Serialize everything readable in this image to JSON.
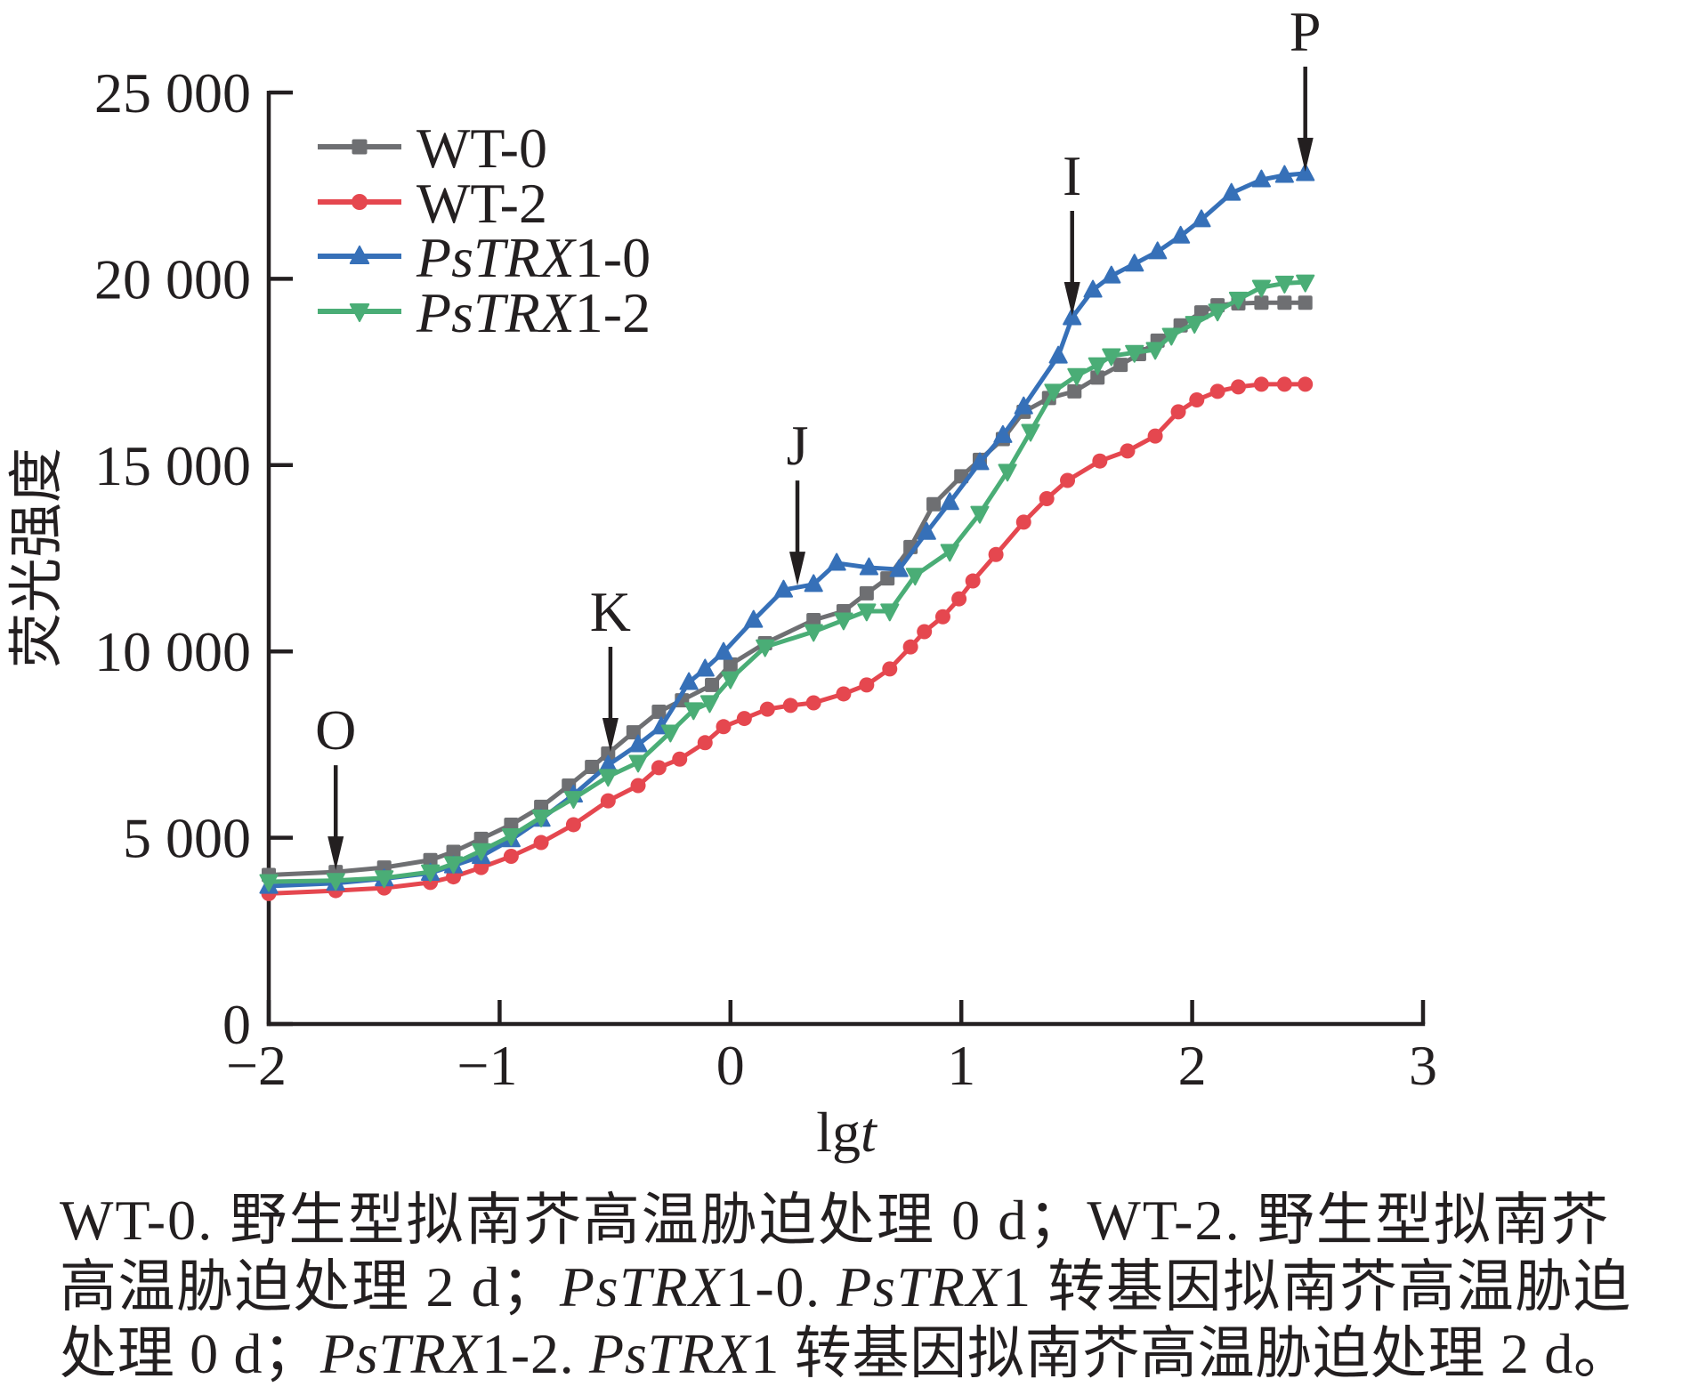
{
  "chart_data": {
    "type": "line",
    "title": "",
    "xlabel": "lgt",
    "xlabel_italic_part": "t",
    "xlabel_roman_part": "lg",
    "ylabel": "荧光强度",
    "xlim": [
      -2,
      3
    ],
    "ylim": [
      0,
      25000
    ],
    "grid": false,
    "legend_position": "top-left",
    "x_ticks": [
      -2,
      -1,
      0,
      1,
      2,
      3
    ],
    "x_tick_labels": [
      "−2",
      "−1",
      "0",
      "1",
      "2",
      "3"
    ],
    "y_ticks": [
      0,
      5000,
      10000,
      15000,
      20000,
      25000
    ],
    "y_tick_labels": [
      "0",
      "5 000",
      "10 000",
      "15 000",
      "20 000",
      "25 000"
    ],
    "series": [
      {
        "name": "WT-0",
        "legend_parts": [
          {
            "text": "WT-0",
            "italic": false
          }
        ],
        "color": "#6e6f72",
        "marker": "square",
        "points": [
          [
            -2,
            4000
          ],
          [
            -1.71,
            4080
          ],
          [
            -1.5,
            4200
          ],
          [
            -1.3,
            4400
          ],
          [
            -1.2,
            4620
          ],
          [
            -1.08,
            4970
          ],
          [
            -0.95,
            5350
          ],
          [
            -0.82,
            5830
          ],
          [
            -0.7,
            6400
          ],
          [
            -0.6,
            6900
          ],
          [
            -0.53,
            7260
          ],
          [
            -0.42,
            7830
          ],
          [
            -0.31,
            8380
          ],
          [
            -0.21,
            8690
          ],
          [
            -0.08,
            9100
          ],
          [
            0,
            9650
          ],
          [
            0.15,
            10220
          ],
          [
            0.36,
            10840
          ],
          [
            0.49,
            11080
          ],
          [
            0.59,
            11560
          ],
          [
            0.68,
            11960
          ],
          [
            0.78,
            12800
          ],
          [
            0.88,
            13950
          ],
          [
            1.0,
            14700
          ],
          [
            1.08,
            15140
          ],
          [
            1.18,
            15700
          ],
          [
            1.27,
            16430
          ],
          [
            1.38,
            16800
          ],
          [
            1.49,
            16980
          ],
          [
            1.59,
            17350
          ],
          [
            1.69,
            17690
          ],
          [
            1.77,
            17980
          ],
          [
            1.85,
            18340
          ],
          [
            1.95,
            18750
          ],
          [
            2.04,
            19100
          ],
          [
            2.11,
            19290
          ],
          [
            2.2,
            19340
          ],
          [
            2.3,
            19360
          ],
          [
            2.4,
            19360
          ],
          [
            2.49,
            19360
          ]
        ]
      },
      {
        "name": "WT-2",
        "legend_parts": [
          {
            "text": "WT-2",
            "italic": false
          }
        ],
        "color": "#e5474f",
        "marker": "circle",
        "points": [
          [
            -2,
            3500
          ],
          [
            -1.71,
            3580
          ],
          [
            -1.5,
            3650
          ],
          [
            -1.3,
            3800
          ],
          [
            -1.2,
            3950
          ],
          [
            -1.08,
            4200
          ],
          [
            -0.95,
            4500
          ],
          [
            -0.82,
            4870
          ],
          [
            -0.68,
            5350
          ],
          [
            -0.53,
            5990
          ],
          [
            -0.4,
            6400
          ],
          [
            -0.31,
            6880
          ],
          [
            -0.22,
            7110
          ],
          [
            -0.11,
            7550
          ],
          [
            -0.03,
            7980
          ],
          [
            0.06,
            8200
          ],
          [
            0.16,
            8450
          ],
          [
            0.26,
            8550
          ],
          [
            0.36,
            8620
          ],
          [
            0.49,
            8860
          ],
          [
            0.59,
            9100
          ],
          [
            0.69,
            9530
          ],
          [
            0.78,
            10120
          ],
          [
            0.84,
            10530
          ],
          [
            0.92,
            10930
          ],
          [
            0.99,
            11410
          ],
          [
            1.05,
            11890
          ],
          [
            1.15,
            12600
          ],
          [
            1.27,
            13470
          ],
          [
            1.37,
            14100
          ],
          [
            1.46,
            14590
          ],
          [
            1.6,
            15110
          ],
          [
            1.72,
            15380
          ],
          [
            1.84,
            15780
          ],
          [
            1.94,
            16430
          ],
          [
            2.02,
            16750
          ],
          [
            2.11,
            16980
          ],
          [
            2.2,
            17100
          ],
          [
            2.3,
            17170
          ],
          [
            2.4,
            17170
          ],
          [
            2.49,
            17170
          ]
        ]
      },
      {
        "name": "PsTRX1-0",
        "legend_parts": [
          {
            "text": "PsTRX",
            "italic": true
          },
          {
            "text": "1-0",
            "italic": false
          }
        ],
        "color": "#3670b8",
        "marker": "triangle-up",
        "points": [
          [
            -2,
            3700
          ],
          [
            -1.71,
            3780
          ],
          [
            -1.5,
            3900
          ],
          [
            -1.3,
            4050
          ],
          [
            -1.2,
            4250
          ],
          [
            -1.08,
            4500
          ],
          [
            -0.95,
            4950
          ],
          [
            -0.82,
            5500
          ],
          [
            -0.68,
            6150
          ],
          [
            -0.53,
            6950
          ],
          [
            -0.4,
            7500
          ],
          [
            -0.3,
            7980
          ],
          [
            -0.18,
            9170
          ],
          [
            -0.11,
            9530
          ],
          [
            -0.03,
            9980
          ],
          [
            0.1,
            10840
          ],
          [
            0.23,
            11650
          ],
          [
            0.36,
            11800
          ],
          [
            0.46,
            12370
          ],
          [
            0.6,
            12250
          ],
          [
            0.73,
            12200
          ],
          [
            0.85,
            13200
          ],
          [
            0.95,
            14000
          ],
          [
            1.08,
            15070
          ],
          [
            1.18,
            15800
          ],
          [
            1.27,
            16570
          ],
          [
            1.42,
            17930
          ],
          [
            1.48,
            18960
          ],
          [
            1.57,
            19700
          ],
          [
            1.65,
            20080
          ],
          [
            1.75,
            20400
          ],
          [
            1.85,
            20730
          ],
          [
            1.95,
            21150
          ],
          [
            2.04,
            21590
          ],
          [
            2.17,
            22300
          ],
          [
            2.3,
            22660
          ],
          [
            2.4,
            22780
          ],
          [
            2.49,
            22830
          ]
        ]
      },
      {
        "name": "PsTRX1-2",
        "legend_parts": [
          {
            "text": "PsTRX",
            "italic": true
          },
          {
            "text": "1-2",
            "italic": false
          }
        ],
        "color": "#4aad76",
        "marker": "triangle-down",
        "points": [
          [
            -2,
            3820
          ],
          [
            -1.71,
            3850
          ],
          [
            -1.5,
            3920
          ],
          [
            -1.3,
            4080
          ],
          [
            -1.2,
            4300
          ],
          [
            -1.08,
            4650
          ],
          [
            -0.95,
            5050
          ],
          [
            -0.82,
            5550
          ],
          [
            -0.68,
            6050
          ],
          [
            -0.53,
            6640
          ],
          [
            -0.4,
            7020
          ],
          [
            -0.26,
            7830
          ],
          [
            -0.16,
            8430
          ],
          [
            -0.09,
            8620
          ],
          [
            0,
            9260
          ],
          [
            0.15,
            10120
          ],
          [
            0.36,
            10530
          ],
          [
            0.49,
            10840
          ],
          [
            0.59,
            11080
          ],
          [
            0.69,
            11080
          ],
          [
            0.8,
            12040
          ],
          [
            0.95,
            12680
          ],
          [
            1.08,
            13700
          ],
          [
            1.2,
            14830
          ],
          [
            1.3,
            15900
          ],
          [
            1.4,
            16980
          ],
          [
            1.5,
            17400
          ],
          [
            1.59,
            17690
          ],
          [
            1.65,
            17930
          ],
          [
            1.75,
            18020
          ],
          [
            1.84,
            18100
          ],
          [
            1.91,
            18480
          ],
          [
            2.01,
            18800
          ],
          [
            2.11,
            19130
          ],
          [
            2.2,
            19450
          ],
          [
            2.3,
            19770
          ],
          [
            2.4,
            19880
          ],
          [
            2.49,
            19910
          ]
        ]
      }
    ],
    "annotations": [
      {
        "label": "O",
        "x": -1.71,
        "y": 4080
      },
      {
        "label": "K",
        "x": -0.52,
        "y": 7260
      },
      {
        "label": "J",
        "x": 0.29,
        "y": 11720
      },
      {
        "label": "I",
        "x": 1.48,
        "y": 18960
      },
      {
        "label": "P",
        "x": 2.49,
        "y": 22830
      }
    ]
  },
  "caption": {
    "lines": [
      [
        {
          "text": "WT-0. 野生型拟南芥高温胁迫处理 0 d；WT-2. 野生型拟南芥",
          "italic": false
        }
      ],
      [
        {
          "text": "高温胁迫处理 2 d；",
          "italic": false
        },
        {
          "text": "PsTRX",
          "italic": true
        },
        {
          "text": "1-0. ",
          "italic": false
        },
        {
          "text": "PsTRX",
          "italic": true
        },
        {
          "text": "1 转基因拟南芥高温胁迫",
          "italic": false
        }
      ],
      [
        {
          "text": "处理 0 d；",
          "italic": false
        },
        {
          "text": "PsTRX",
          "italic": true
        },
        {
          "text": "1-2. ",
          "italic": false
        },
        {
          "text": "PsTRX",
          "italic": true
        },
        {
          "text": "1 转基因拟南芥高温胁迫处理 2 d。",
          "italic": false
        }
      ]
    ]
  }
}
